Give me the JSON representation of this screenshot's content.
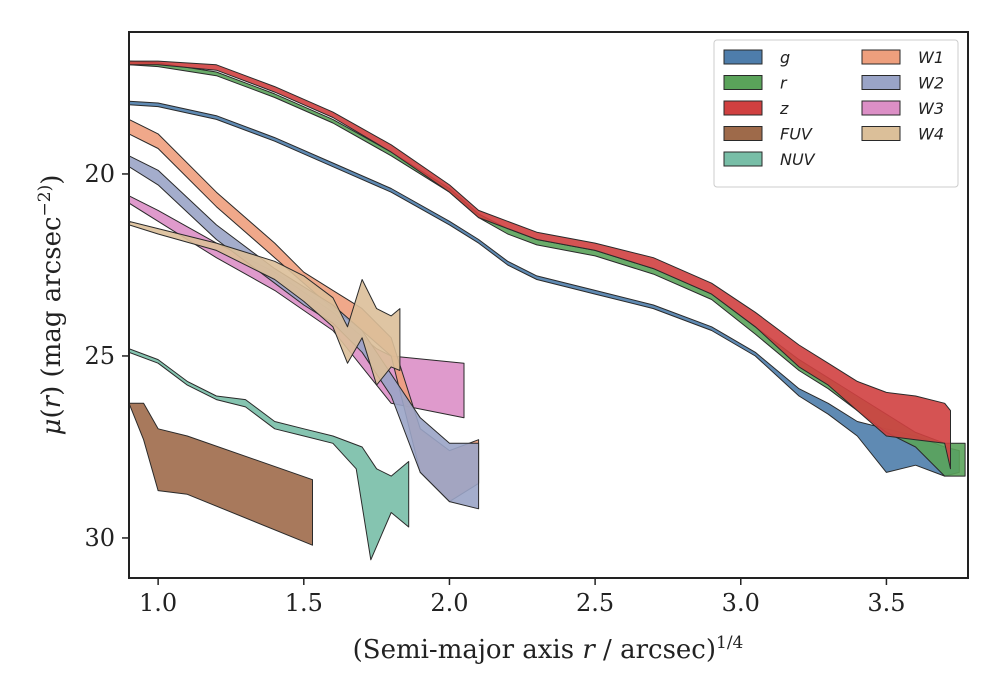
{
  "chart_data": {
    "type": "area",
    "xlabel": "(Semi-major axis r / arcsec)^1/4",
    "ylabel": "μ(r) (mag arcsec^−2)",
    "xlim": [
      0.9,
      3.78
    ],
    "ylim": [
      31.1,
      16.1
    ],
    "y_inverted": true,
    "xticks": [
      1.0,
      1.5,
      2.0,
      2.5,
      3.0,
      3.5
    ],
    "xtick_labels": [
      "1.0",
      "1.5",
      "2.0",
      "2.5",
      "3.0",
      "3.5"
    ],
    "yticks": [
      20,
      25,
      30
    ],
    "ytick_labels": [
      "20",
      "25",
      "30"
    ],
    "grid": false,
    "legend": {
      "location": "top-right",
      "columns": 2
    },
    "series": [
      {
        "name": "g",
        "color": "#4e7dab",
        "upper": [
          [
            0.9,
            18.0
          ],
          [
            1.0,
            18.05
          ],
          [
            1.2,
            18.4
          ],
          [
            1.4,
            19.0
          ],
          [
            1.6,
            19.7
          ],
          [
            1.8,
            20.4
          ],
          [
            2.0,
            21.3
          ],
          [
            2.1,
            21.8
          ],
          [
            2.2,
            22.4
          ],
          [
            2.3,
            22.8
          ],
          [
            2.5,
            23.2
          ],
          [
            2.7,
            23.6
          ],
          [
            2.9,
            24.2
          ],
          [
            3.05,
            24.9
          ],
          [
            3.2,
            25.9
          ],
          [
            3.3,
            26.3
          ],
          [
            3.4,
            26.8
          ],
          [
            3.5,
            27.0
          ],
          [
            3.6,
            27.2
          ],
          [
            3.7,
            27.5
          ],
          [
            3.75,
            27.6
          ]
        ],
        "lower": [
          [
            0.9,
            18.1
          ],
          [
            1.0,
            18.15
          ],
          [
            1.2,
            18.5
          ],
          [
            1.4,
            19.1
          ],
          [
            1.6,
            19.8
          ],
          [
            1.8,
            20.5
          ],
          [
            2.0,
            21.4
          ],
          [
            2.1,
            21.9
          ],
          [
            2.2,
            22.5
          ],
          [
            2.3,
            22.9
          ],
          [
            2.5,
            23.3
          ],
          [
            2.7,
            23.7
          ],
          [
            2.9,
            24.3
          ],
          [
            3.05,
            25.0
          ],
          [
            3.2,
            26.1
          ],
          [
            3.3,
            26.6
          ],
          [
            3.4,
            27.2
          ],
          [
            3.5,
            28.2
          ],
          [
            3.6,
            28.0
          ],
          [
            3.7,
            28.3
          ],
          [
            3.75,
            28.2
          ]
        ]
      },
      {
        "name": "r",
        "color": "#5aa35a",
        "upper": [
          [
            0.9,
            16.9
          ],
          [
            1.0,
            16.95
          ],
          [
            1.2,
            17.2
          ],
          [
            1.4,
            17.8
          ],
          [
            1.6,
            18.5
          ],
          [
            1.8,
            19.4
          ],
          [
            2.0,
            20.4
          ],
          [
            2.1,
            21.1
          ],
          [
            2.2,
            21.5
          ],
          [
            2.3,
            21.8
          ],
          [
            2.5,
            22.1
          ],
          [
            2.7,
            22.6
          ],
          [
            2.9,
            23.3
          ],
          [
            3.05,
            24.2
          ],
          [
            3.2,
            25.1
          ],
          [
            3.3,
            25.6
          ],
          [
            3.4,
            26.1
          ],
          [
            3.5,
            26.6
          ],
          [
            3.6,
            27.1
          ],
          [
            3.7,
            27.4
          ],
          [
            3.77,
            27.4
          ]
        ],
        "lower": [
          [
            0.9,
            17.0
          ],
          [
            1.0,
            17.05
          ],
          [
            1.2,
            17.3
          ],
          [
            1.4,
            17.9
          ],
          [
            1.6,
            18.6
          ],
          [
            1.8,
            19.5
          ],
          [
            2.0,
            20.5
          ],
          [
            2.1,
            21.2
          ],
          [
            2.2,
            21.65
          ],
          [
            2.3,
            21.95
          ],
          [
            2.5,
            22.25
          ],
          [
            2.7,
            22.75
          ],
          [
            2.9,
            23.45
          ],
          [
            3.05,
            24.4
          ],
          [
            3.2,
            25.4
          ],
          [
            3.3,
            25.9
          ],
          [
            3.4,
            26.5
          ],
          [
            3.5,
            27.1
          ],
          [
            3.6,
            27.5
          ],
          [
            3.7,
            28.3
          ],
          [
            3.77,
            28.3
          ]
        ]
      },
      {
        "name": "z",
        "color": "#d04040",
        "upper": [
          [
            0.9,
            16.9
          ],
          [
            1.0,
            16.9
          ],
          [
            1.2,
            17.0
          ],
          [
            1.4,
            17.6
          ],
          [
            1.6,
            18.3
          ],
          [
            1.8,
            19.2
          ],
          [
            2.0,
            20.3
          ],
          [
            2.1,
            21.0
          ],
          [
            2.2,
            21.3
          ],
          [
            2.3,
            21.6
          ],
          [
            2.5,
            21.9
          ],
          [
            2.7,
            22.3
          ],
          [
            2.9,
            23.0
          ],
          [
            3.05,
            23.8
          ],
          [
            3.2,
            24.7
          ],
          [
            3.3,
            25.2
          ],
          [
            3.4,
            25.7
          ],
          [
            3.5,
            26.0
          ],
          [
            3.6,
            26.1
          ],
          [
            3.7,
            26.3
          ],
          [
            3.72,
            26.5
          ]
        ],
        "lower": [
          [
            0.9,
            17.0
          ],
          [
            1.0,
            17.0
          ],
          [
            1.2,
            17.15
          ],
          [
            1.4,
            17.75
          ],
          [
            1.6,
            18.45
          ],
          [
            1.8,
            19.4
          ],
          [
            2.0,
            20.5
          ],
          [
            2.1,
            21.2
          ],
          [
            2.2,
            21.5
          ],
          [
            2.3,
            21.8
          ],
          [
            2.5,
            22.1
          ],
          [
            2.7,
            22.6
          ],
          [
            2.9,
            23.3
          ],
          [
            3.05,
            24.2
          ],
          [
            3.2,
            25.3
          ],
          [
            3.3,
            25.8
          ],
          [
            3.4,
            26.5
          ],
          [
            3.5,
            27.2
          ],
          [
            3.6,
            27.3
          ],
          [
            3.7,
            27.4
          ],
          [
            3.72,
            28.1
          ]
        ]
      },
      {
        "name": "FUV",
        "color": "#9e6a4a",
        "upper": [
          [
            0.9,
            26.3
          ],
          [
            0.95,
            26.3
          ],
          [
            1.0,
            27.0
          ],
          [
            1.1,
            27.2
          ],
          [
            1.53,
            28.4
          ]
        ],
        "lower": [
          [
            0.9,
            26.3
          ],
          [
            0.95,
            27.3
          ],
          [
            1.0,
            28.7
          ],
          [
            1.1,
            28.8
          ],
          [
            1.53,
            30.2
          ]
        ]
      },
      {
        "name": "NUV",
        "color": "#78bea7",
        "upper": [
          [
            0.9,
            24.8
          ],
          [
            1.0,
            25.1
          ],
          [
            1.1,
            25.7
          ],
          [
            1.2,
            26.1
          ],
          [
            1.3,
            26.2
          ],
          [
            1.4,
            26.8
          ],
          [
            1.5,
            27.0
          ],
          [
            1.6,
            27.2
          ],
          [
            1.7,
            27.5
          ],
          [
            1.75,
            28.1
          ],
          [
            1.8,
            28.3
          ],
          [
            1.86,
            27.9
          ]
        ],
        "lower": [
          [
            0.9,
            24.9
          ],
          [
            1.0,
            25.2
          ],
          [
            1.1,
            25.8
          ],
          [
            1.2,
            26.2
          ],
          [
            1.3,
            26.4
          ],
          [
            1.4,
            27.0
          ],
          [
            1.5,
            27.2
          ],
          [
            1.6,
            27.4
          ],
          [
            1.68,
            28.1
          ],
          [
            1.73,
            30.6
          ],
          [
            1.8,
            29.3
          ],
          [
            1.86,
            29.7
          ]
        ]
      },
      {
        "name": "W1",
        "color": "#ee9f7d",
        "upper": [
          [
            0.9,
            18.5
          ],
          [
            1.0,
            18.9
          ],
          [
            1.2,
            20.5
          ],
          [
            1.4,
            21.9
          ],
          [
            1.5,
            22.7
          ],
          [
            1.6,
            23.2
          ],
          [
            1.7,
            23.7
          ],
          [
            1.8,
            24.5
          ],
          [
            1.9,
            27.0
          ],
          [
            2.0,
            27.6
          ],
          [
            2.1,
            27.3
          ]
        ],
        "lower": [
          [
            0.9,
            18.9
          ],
          [
            1.0,
            19.3
          ],
          [
            1.2,
            20.9
          ],
          [
            1.4,
            22.3
          ],
          [
            1.5,
            23.0
          ],
          [
            1.6,
            23.7
          ],
          [
            1.7,
            24.3
          ],
          [
            1.8,
            25.0
          ],
          [
            1.9,
            28.2
          ],
          [
            2.0,
            29.0
          ],
          [
            2.1,
            28.5
          ]
        ]
      },
      {
        "name": "W2",
        "color": "#9aa4c7",
        "upper": [
          [
            0.9,
            19.5
          ],
          [
            1.0,
            19.9
          ],
          [
            1.2,
            21.4
          ],
          [
            1.4,
            22.6
          ],
          [
            1.5,
            23.1
          ],
          [
            1.6,
            23.6
          ],
          [
            1.7,
            24.3
          ],
          [
            1.8,
            25.5
          ],
          [
            1.9,
            26.7
          ],
          [
            2.0,
            27.4
          ],
          [
            2.1,
            27.4
          ]
        ],
        "lower": [
          [
            0.9,
            19.8
          ],
          [
            1.0,
            20.3
          ],
          [
            1.2,
            21.8
          ],
          [
            1.4,
            23.0
          ],
          [
            1.5,
            23.6
          ],
          [
            1.6,
            24.1
          ],
          [
            1.7,
            24.9
          ],
          [
            1.8,
            26.1
          ],
          [
            1.9,
            28.2
          ],
          [
            2.0,
            29.0
          ],
          [
            2.1,
            29.2
          ]
        ]
      },
      {
        "name": "W3",
        "color": "#dc8fc6",
        "upper": [
          [
            0.9,
            20.6
          ],
          [
            1.0,
            21.0
          ],
          [
            1.2,
            21.9
          ],
          [
            1.4,
            22.7
          ],
          [
            1.6,
            23.8
          ],
          [
            1.75,
            24.8
          ],
          [
            1.8,
            25.0
          ],
          [
            2.05,
            25.2
          ]
        ],
        "lower": [
          [
            0.9,
            20.8
          ],
          [
            1.0,
            21.3
          ],
          [
            1.2,
            22.3
          ],
          [
            1.4,
            23.2
          ],
          [
            1.6,
            24.3
          ],
          [
            1.75,
            25.8
          ],
          [
            1.8,
            26.3
          ],
          [
            2.05,
            26.7
          ]
        ]
      },
      {
        "name": "W4",
        "color": "#dbbf99",
        "upper": [
          [
            0.9,
            21.3
          ],
          [
            1.0,
            21.5
          ],
          [
            1.2,
            21.9
          ],
          [
            1.4,
            22.4
          ],
          [
            1.5,
            22.8
          ],
          [
            1.6,
            23.4
          ],
          [
            1.65,
            24.2
          ],
          [
            1.7,
            22.9
          ],
          [
            1.75,
            23.7
          ],
          [
            1.8,
            23.9
          ],
          [
            1.83,
            23.7
          ]
        ],
        "lower": [
          [
            0.9,
            21.4
          ],
          [
            1.0,
            21.65
          ],
          [
            1.2,
            22.1
          ],
          [
            1.4,
            22.9
          ],
          [
            1.5,
            23.5
          ],
          [
            1.6,
            24.2
          ],
          [
            1.65,
            25.2
          ],
          [
            1.7,
            24.5
          ],
          [
            1.75,
            25.8
          ],
          [
            1.8,
            25.3
          ],
          [
            1.83,
            25.4
          ]
        ]
      }
    ]
  }
}
